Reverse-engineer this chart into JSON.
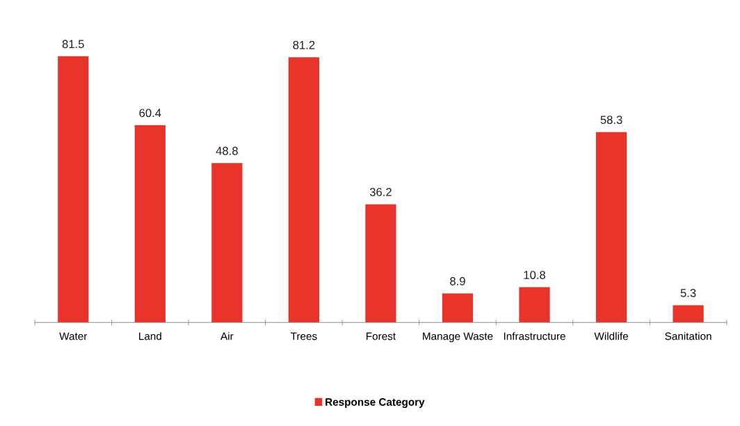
{
  "chart_data": {
    "type": "bar",
    "categories": [
      "Water",
      "Land",
      "Air",
      "Trees",
      "Forest",
      "Manage Waste",
      "Infrastructure",
      "Wildlife",
      "Sanitation"
    ],
    "series": [
      {
        "name": "Response Category",
        "color": "#e8332a",
        "values": [
          81.5,
          60.4,
          48.8,
          81.2,
          36.2,
          8.9,
          10.8,
          58.3,
          5.3
        ]
      }
    ],
    "data_labels": true,
    "legend": "bottom",
    "grid": false
  }
}
